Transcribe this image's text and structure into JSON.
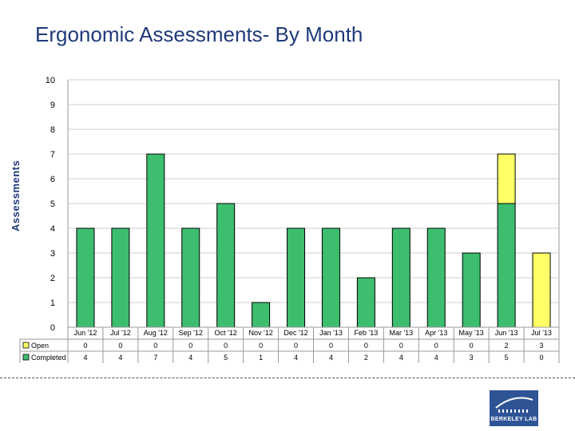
{
  "slide": {
    "title": "Ergonomic Assessments- By Month"
  },
  "chart_data": {
    "type": "bar",
    "stacked": true,
    "title": "Ergonomic Assessments- By Month",
    "xlabel": "",
    "ylabel": "Assessments",
    "ylim": [
      0,
      10
    ],
    "yticks": [
      0,
      1,
      2,
      3,
      4,
      5,
      6,
      7,
      8,
      9,
      10
    ],
    "grid": true,
    "categories": [
      "Jun '12",
      "Jul '12",
      "Aug '12",
      "Sep '12",
      "Oct '12",
      "Nov '12",
      "Dec '12",
      "Jan '13",
      "Feb '13",
      "Mar '13",
      "Apr '13",
      "May '13",
      "Jun '13",
      "Jul '13"
    ],
    "series": [
      {
        "name": "Completed",
        "color": "#3CBE6E",
        "values": [
          4,
          4,
          7,
          4,
          5,
          1,
          4,
          4,
          2,
          4,
          4,
          3,
          5,
          0
        ]
      },
      {
        "name": "Open",
        "color": "#FFFF66",
        "values": [
          0,
          0,
          0,
          0,
          0,
          0,
          0,
          0,
          0,
          0,
          0,
          0,
          2,
          3
        ]
      }
    ],
    "data_table": true,
    "table_order": [
      "Open",
      "Completed"
    ]
  },
  "logo": {
    "text": "BERKELEY LAB"
  }
}
